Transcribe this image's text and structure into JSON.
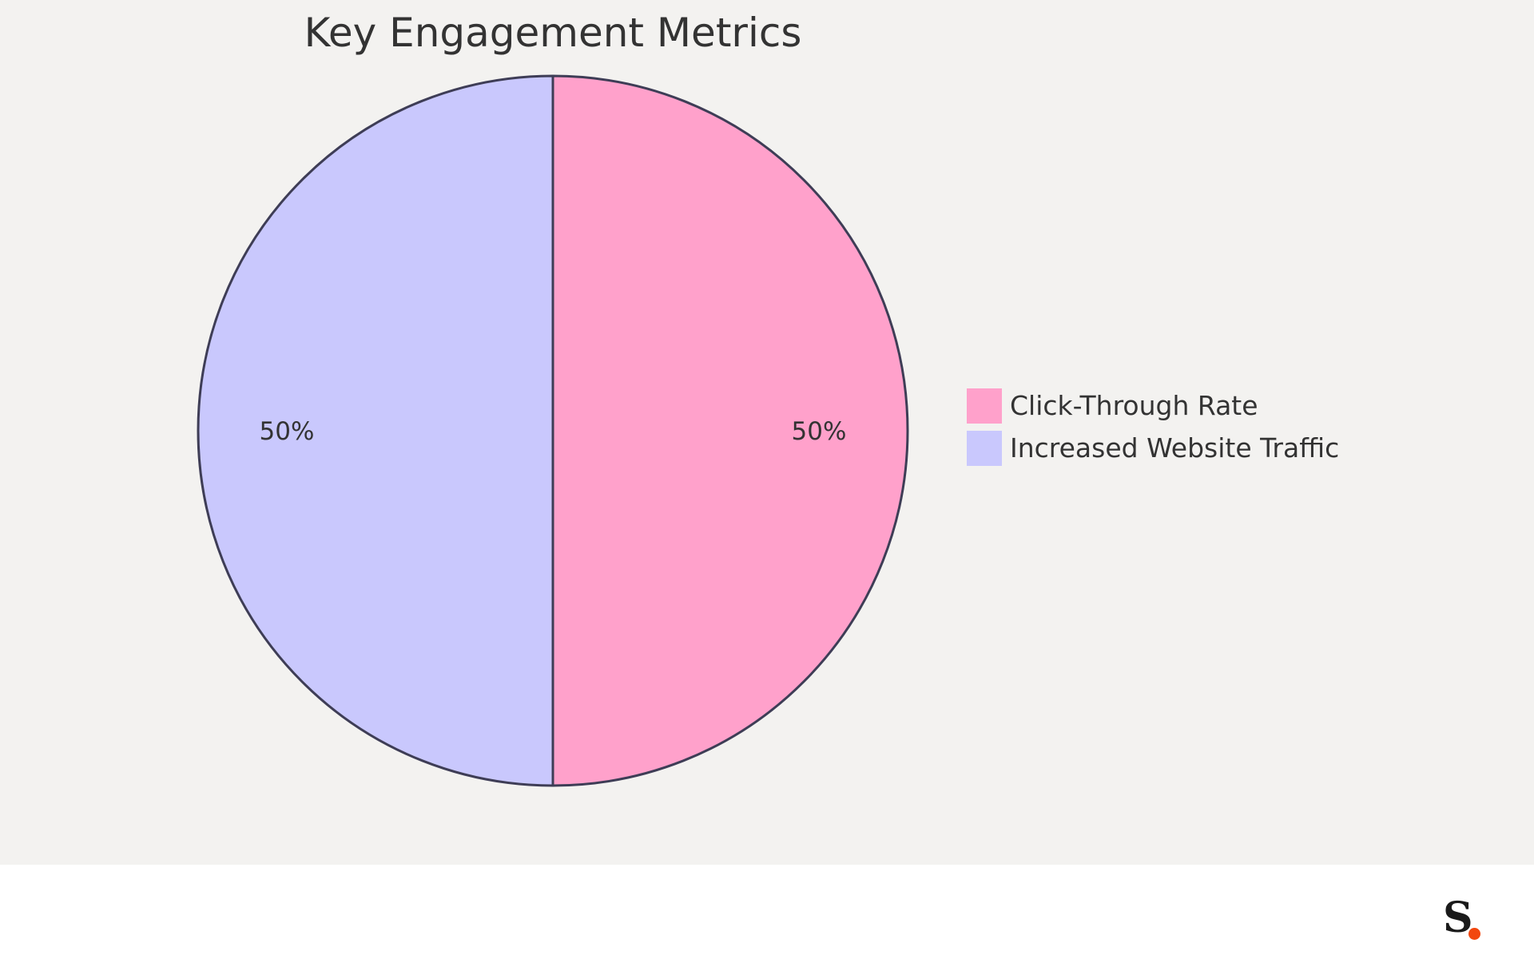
{
  "chart_data": {
    "type": "pie",
    "title": "Key Engagement Metrics",
    "slices": [
      {
        "label": "Click-Through Rate",
        "value": 50,
        "display": "50%",
        "color": "#ffa1cb"
      },
      {
        "label": "Increased Website Traffic",
        "value": 50,
        "display": "50%",
        "color": "#c9c8fd"
      }
    ],
    "stroke_color": "#3e3d56",
    "legend_position": "right"
  },
  "logo": {
    "letter": "S",
    "dot_color": "#f2470f",
    "letter_color": "#1a1a1a"
  },
  "colors": {
    "background": "#f3f2f0",
    "footer": "#ffffff"
  }
}
